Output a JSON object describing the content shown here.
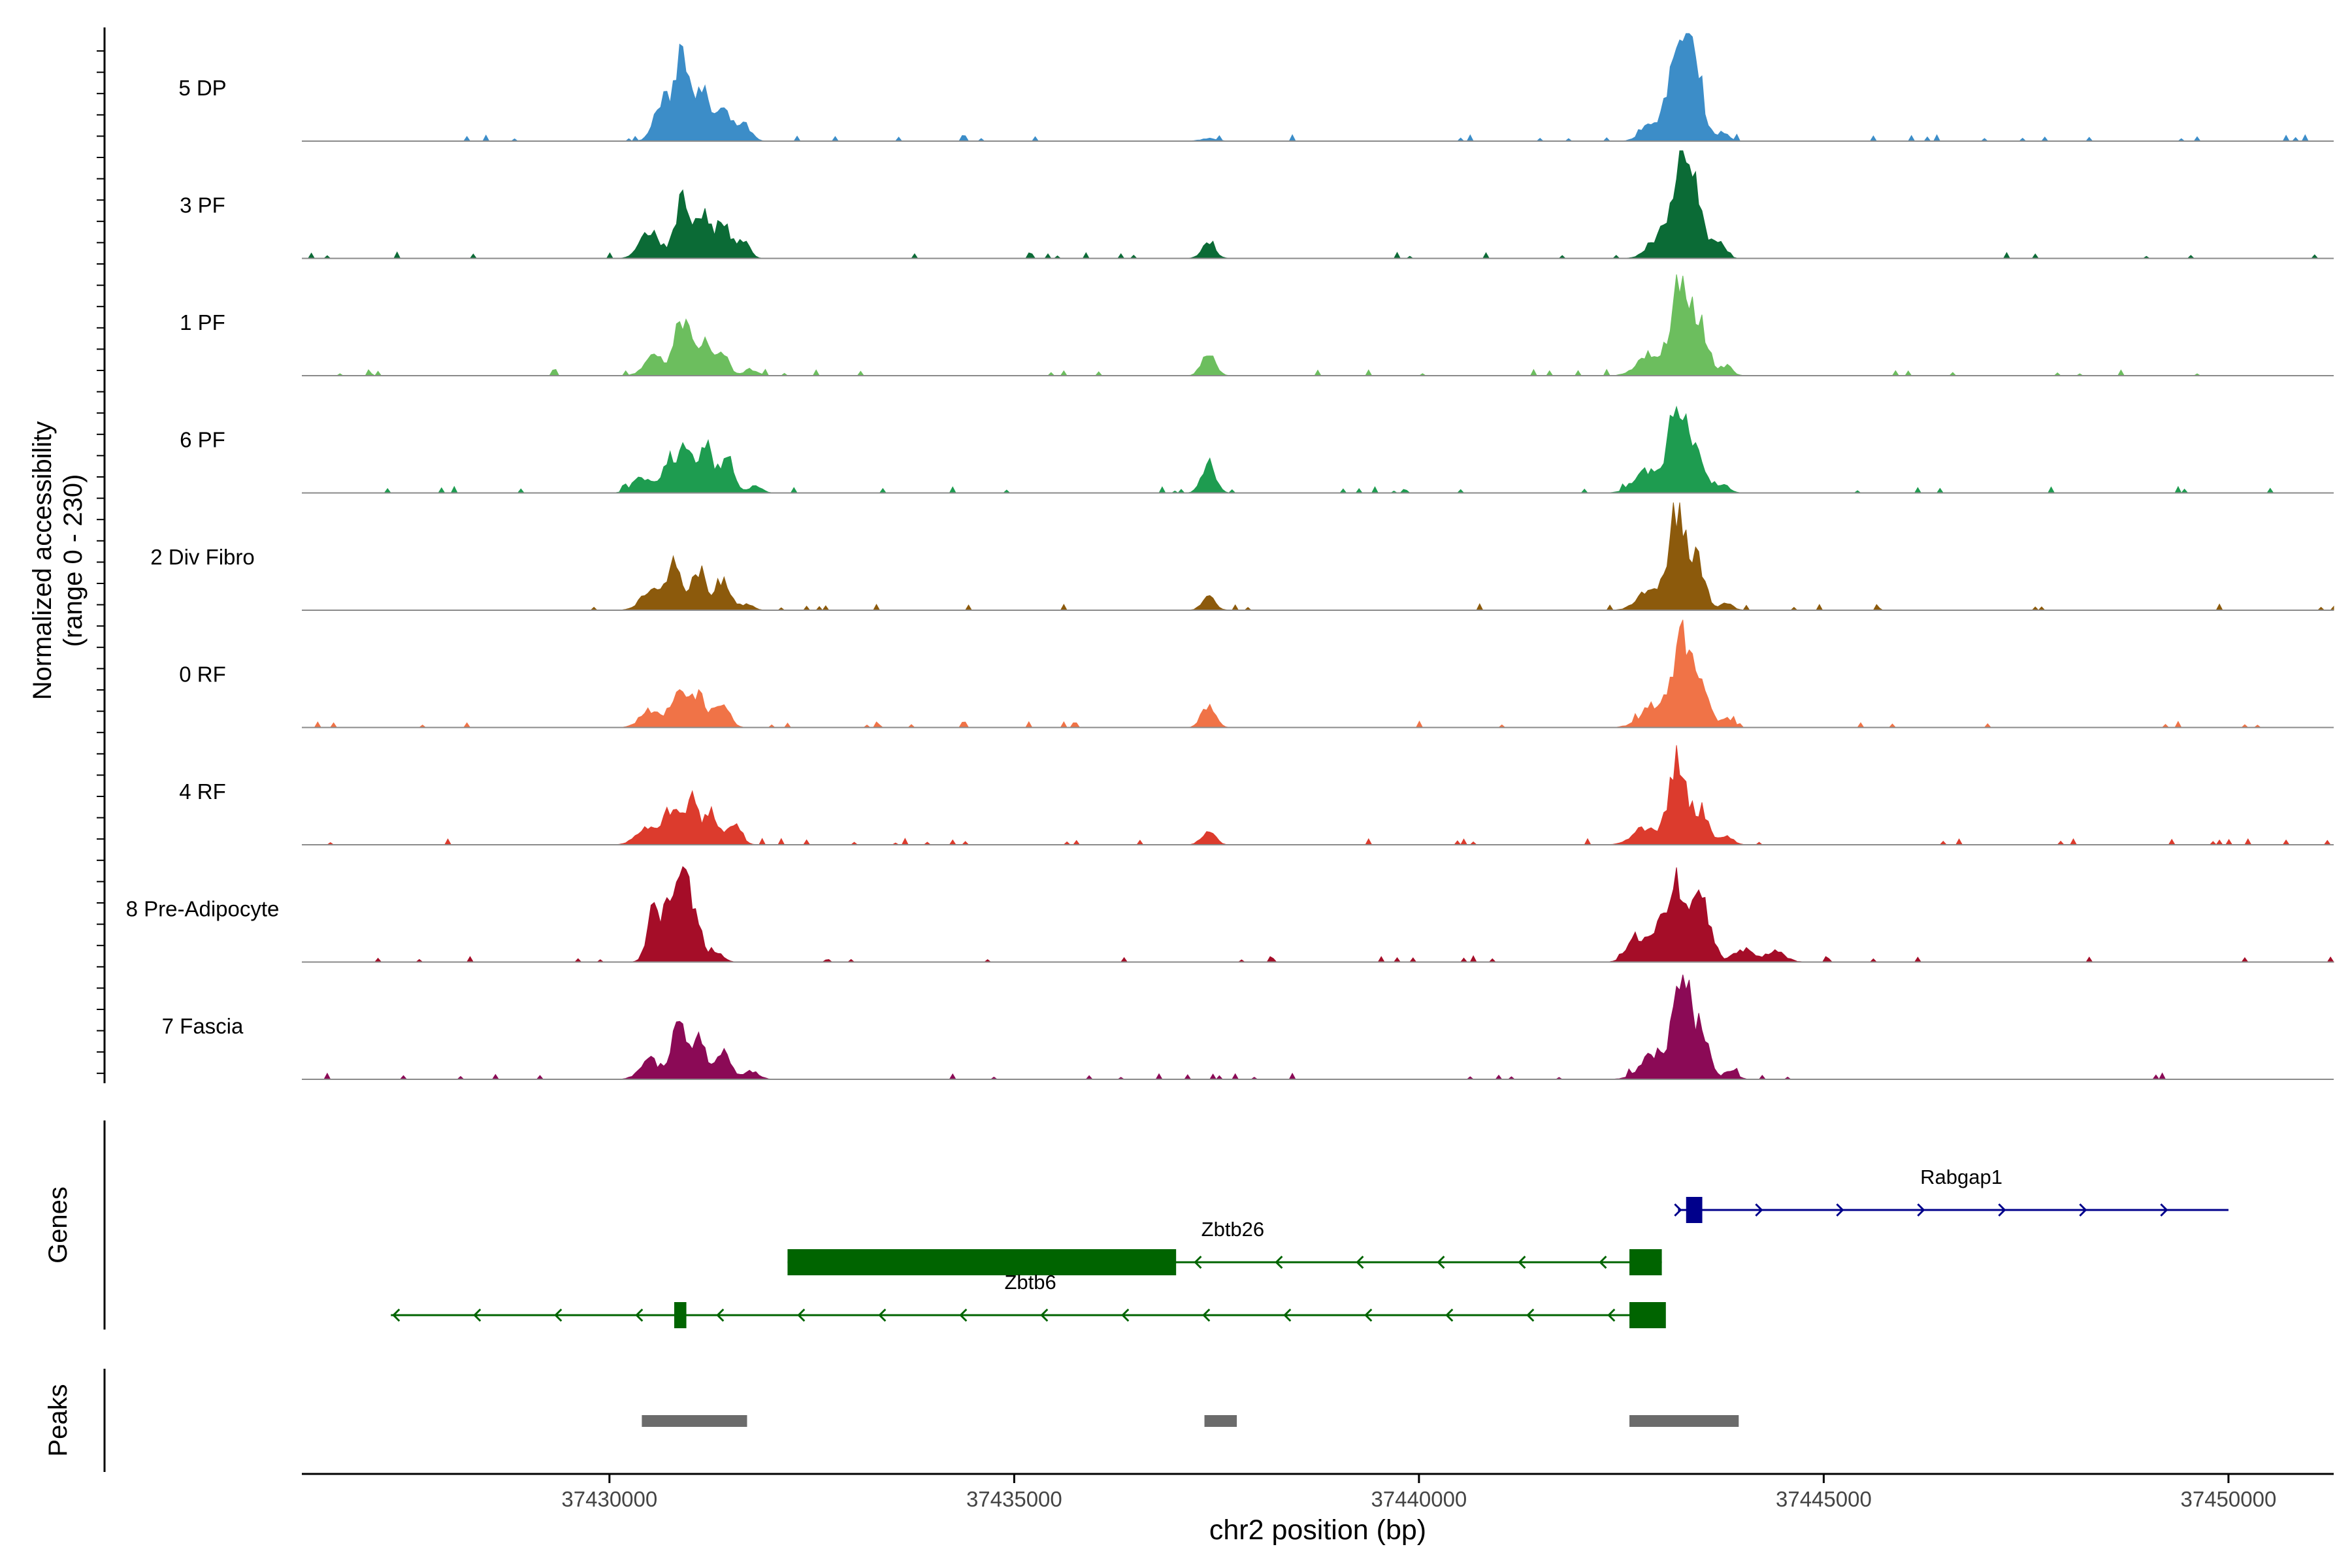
{
  "chart_data": {
    "type": "area",
    "title": "",
    "xlabel": "chr2 position (bp)",
    "ylabel": [
      "Normalized accessibility",
      "(range 0 - 230)"
    ],
    "xlim": [
      37426200,
      37451300
    ],
    "ylim": [
      0,
      230
    ],
    "xticks": [
      37430000,
      37435000,
      37440000,
      37445000,
      37450000
    ],
    "xtick_labels": [
      "37430000",
      "37435000",
      "37440000",
      "37445000",
      "37450000"
    ],
    "panel_labels": {
      "genes": "Genes",
      "peaks": "Peaks"
    },
    "peak_centers": [
      37430900,
      37431400,
      37437400,
      37443300
    ],
    "tracks": [
      {
        "name": "5 DP",
        "color": "#3C8DC8",
        "peaks": [
          [
            37430650,
            90,
            100
          ],
          [
            37430900,
            220,
            90
          ],
          [
            37431150,
            110,
            90
          ],
          [
            37431400,
            70,
            90
          ],
          [
            37431650,
            40,
            90
          ],
          [
            37442850,
            35,
            120
          ],
          [
            37443100,
            95,
            100
          ],
          [
            37443300,
            230,
            110
          ],
          [
            37443450,
            90,
            90
          ],
          [
            37443750,
            20,
            80
          ],
          [
            37437400,
            6,
            100
          ]
        ]
      },
      {
        "name": "3 PF",
        "color": "#0B6B36",
        "peaks": [
          [
            37430500,
            60,
            120
          ],
          [
            37430900,
            140,
            90
          ],
          [
            37431150,
            105,
            85
          ],
          [
            37431400,
            85,
            85
          ],
          [
            37431650,
            40,
            80
          ],
          [
            37437400,
            40,
            80
          ],
          [
            37443000,
            50,
            150
          ],
          [
            37443250,
            235,
            110
          ],
          [
            37443450,
            100,
            90
          ],
          [
            37443700,
            40,
            80
          ]
        ]
      },
      {
        "name": "1 PF",
        "color": "#6CBE5E",
        "peaks": [
          [
            37430550,
            45,
            120
          ],
          [
            37430900,
            135,
            90
          ],
          [
            37431150,
            80,
            90
          ],
          [
            37431400,
            45,
            85
          ],
          [
            37431750,
            15,
            80
          ],
          [
            37437400,
            60,
            80
          ],
          [
            37442850,
            50,
            150
          ],
          [
            37443250,
            230,
            120
          ],
          [
            37443500,
            90,
            90
          ],
          [
            37443800,
            25,
            70
          ]
        ]
      },
      {
        "name": "6 PF",
        "color": "#1E9C50",
        "peaks": [
          [
            37430400,
            35,
            120
          ],
          [
            37430750,
            80,
            90
          ],
          [
            37430950,
            95,
            85
          ],
          [
            37431200,
            105,
            85
          ],
          [
            37431450,
            75,
            85
          ],
          [
            37431800,
            15,
            80
          ],
          [
            37437400,
            75,
            80
          ],
          [
            37442800,
            50,
            150
          ],
          [
            37443200,
            200,
            120
          ],
          [
            37443450,
            80,
            90
          ],
          [
            37443750,
            20,
            80
          ]
        ]
      },
      {
        "name": "2 Div Fibro",
        "color": "#8C5A0C",
        "peaks": [
          [
            37430500,
            45,
            120
          ],
          [
            37430800,
            120,
            90
          ],
          [
            37431100,
            95,
            90
          ],
          [
            37431400,
            75,
            90
          ],
          [
            37431700,
            15,
            80
          ],
          [
            37437400,
            30,
            80
          ],
          [
            37442850,
            45,
            150
          ],
          [
            37443200,
            240,
            110
          ],
          [
            37443450,
            100,
            90
          ],
          [
            37443800,
            15,
            80
          ]
        ]
      },
      {
        "name": "0 RF",
        "color": "#F07347",
        "peaks": [
          [
            37430500,
            40,
            120
          ],
          [
            37430850,
            95,
            90
          ],
          [
            37431100,
            75,
            90
          ],
          [
            37431400,
            65,
            85
          ],
          [
            37437400,
            55,
            80
          ],
          [
            37442900,
            50,
            160
          ],
          [
            37443250,
            220,
            110
          ],
          [
            37443500,
            85,
            90
          ],
          [
            37443800,
            20,
            80
          ]
        ]
      },
      {
        "name": "4 RF",
        "color": "#DC3B2D",
        "peaks": [
          [
            37430450,
            40,
            120
          ],
          [
            37430750,
            85,
            90
          ],
          [
            37431000,
            105,
            85
          ],
          [
            37431250,
            80,
            85
          ],
          [
            37431550,
            55,
            80
          ],
          [
            37437400,
            35,
            80
          ],
          [
            37442800,
            40,
            150
          ],
          [
            37443200,
            195,
            110
          ],
          [
            37443500,
            80,
            90
          ],
          [
            37443800,
            20,
            80
          ]
        ]
      },
      {
        "name": "8 Pre-Adipocyte",
        "color": "#A50D28",
        "peaks": [
          [
            37430550,
            125,
            80
          ],
          [
            37430750,
            140,
            70
          ],
          [
            37430900,
            180,
            70
          ],
          [
            37431050,
            115,
            80
          ],
          [
            37431300,
            25,
            90
          ],
          [
            37442700,
            60,
            120
          ],
          [
            37443000,
            85,
            110
          ],
          [
            37443200,
            170,
            90
          ],
          [
            37443450,
            155,
            90
          ],
          [
            37443600,
            45,
            80
          ],
          [
            37444000,
            30,
            120
          ],
          [
            37444400,
            25,
            120
          ]
        ]
      },
      {
        "name": "7 Fascia",
        "color": "#8B0A56",
        "peaks": [
          [
            37430500,
            45,
            120
          ],
          [
            37430850,
            130,
            90
          ],
          [
            37431100,
            95,
            90
          ],
          [
            37431400,
            75,
            90
          ],
          [
            37431750,
            20,
            90
          ],
          [
            37442900,
            60,
            160
          ],
          [
            37443250,
            230,
            110
          ],
          [
            37443500,
            110,
            90
          ],
          [
            37443850,
            20,
            80
          ]
        ]
      }
    ],
    "genes": [
      {
        "name": "Rabgap1",
        "strand": "+",
        "color": "#00008B",
        "start": 37443200,
        "end": 37450000,
        "exons": [
          [
            37443300,
            37443500
          ]
        ],
        "label_x": 37446700
      },
      {
        "name": "Zbtb26",
        "strand": "-",
        "color": "#006400",
        "start": 37432200,
        "end": 37443000,
        "exons": [
          [
            37432200,
            37437000
          ],
          [
            37442600,
            37443000
          ]
        ],
        "label_x": 37437700
      },
      {
        "name": "Zbtb6",
        "strand": "-",
        "color": "#006400",
        "start": 37427300,
        "end": 37443000,
        "exons": [
          [
            37430800,
            37430950
          ],
          [
            37442600,
            37443050
          ]
        ],
        "label_x": 37435200
      }
    ],
    "peak_regions": [
      [
        37430400,
        37431700
      ],
      [
        37437350,
        37437750
      ],
      [
        37442600,
        37443950
      ]
    ]
  }
}
